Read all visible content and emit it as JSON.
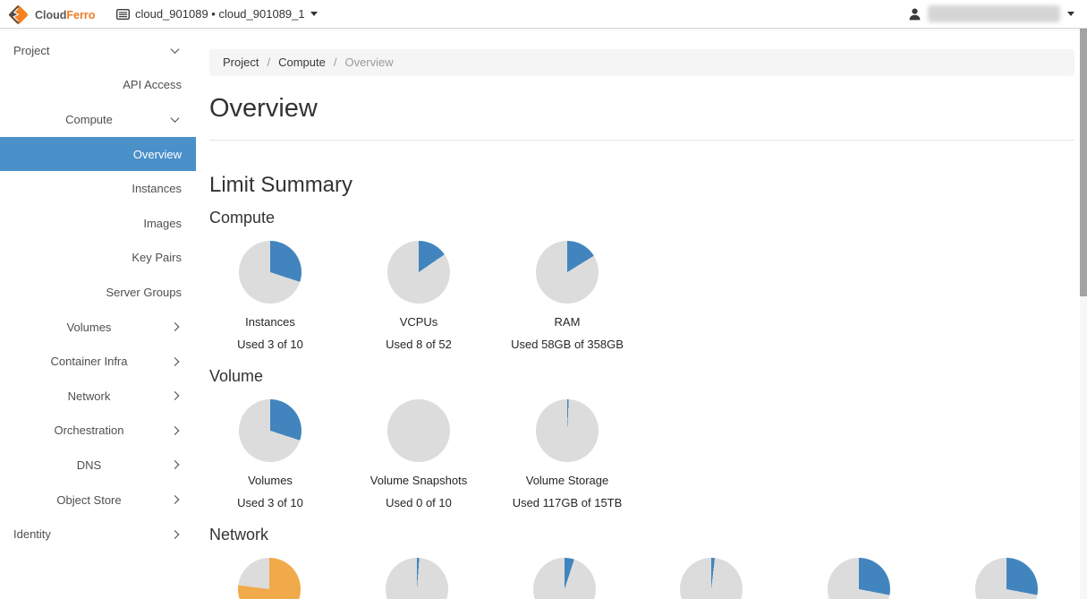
{
  "theme": {
    "accent_blue": "#4a90c9",
    "pie_used_blue": "#4285be",
    "pie_track_gray": "#dcdcdc",
    "pie_warning_orange": "#f0aa4a",
    "brand_orange": "#f58220",
    "brand_dark": "#4d4d4d"
  },
  "navbar": {
    "brand_cloud": "Cloud",
    "brand_ferro": "Ferro",
    "context_label": "cloud_901089 • cloud_901089_1",
    "user_email_redacted": true
  },
  "sidebar": {
    "items": [
      {
        "label": "Project",
        "level": 1,
        "chevron": "down",
        "active": false
      },
      {
        "label": "API Access",
        "level": 3,
        "chevron": "none",
        "active": false
      },
      {
        "label": "Compute",
        "level": 2,
        "chevron": "down",
        "active": false
      },
      {
        "label": "Overview",
        "level": 3,
        "chevron": "none",
        "active": true
      },
      {
        "label": "Instances",
        "level": 3,
        "chevron": "none",
        "active": false
      },
      {
        "label": "Images",
        "level": 3,
        "chevron": "none",
        "active": false
      },
      {
        "label": "Key Pairs",
        "level": 3,
        "chevron": "none",
        "active": false
      },
      {
        "label": "Server Groups",
        "level": 3,
        "chevron": "none",
        "active": false
      },
      {
        "label": "Volumes",
        "level": 2,
        "chevron": "right",
        "active": false
      },
      {
        "label": "Container Infra",
        "level": 2,
        "chevron": "right",
        "active": false
      },
      {
        "label": "Network",
        "level": 2,
        "chevron": "right",
        "active": false
      },
      {
        "label": "Orchestration",
        "level": 2,
        "chevron": "right",
        "active": false
      },
      {
        "label": "DNS",
        "level": 2,
        "chevron": "right",
        "active": false
      },
      {
        "label": "Object Store",
        "level": 2,
        "chevron": "right",
        "active": false
      },
      {
        "label": "Identity",
        "level": 1,
        "chevron": "right",
        "active": false
      }
    ]
  },
  "breadcrumb": {
    "items": [
      {
        "label": "Project",
        "current": false
      },
      {
        "label": "Compute",
        "current": false
      },
      {
        "label": "Overview",
        "current": true
      }
    ]
  },
  "main": {
    "title": "Overview",
    "limit_summary_title": "Limit Summary"
  },
  "chart_data": [
    {
      "type": "pie",
      "group": "Compute",
      "items": [
        {
          "label": "Instances",
          "caption": "Used 3 of 10",
          "used": 3,
          "limit": 10,
          "percent": 30,
          "color": "#4285be"
        },
        {
          "label": "VCPUs",
          "caption": "Used 8 of 52",
          "used": 8,
          "limit": 52,
          "percent": 15.4,
          "color": "#4285be"
        },
        {
          "label": "RAM",
          "caption": "Used 58GB of 358GB",
          "used": 58,
          "limit": 358,
          "percent": 16.2,
          "color": "#4285be"
        }
      ]
    },
    {
      "type": "pie",
      "group": "Volume",
      "items": [
        {
          "label": "Volumes",
          "caption": "Used 3 of 10",
          "used": 3,
          "limit": 10,
          "percent": 30,
          "color": "#4285be"
        },
        {
          "label": "Volume Snapshots",
          "caption": "Used 0 of 10",
          "used": 0,
          "limit": 10,
          "percent": 0,
          "color": "#4285be"
        },
        {
          "label": "Volume Storage",
          "caption": "Used 117GB of 15TB",
          "used": 117,
          "limit": 15360,
          "percent": 0.8,
          "color": "#4285be"
        }
      ]
    },
    {
      "type": "pie",
      "group": "Network",
      "items": [
        {
          "label": "",
          "caption": "",
          "percent": 77,
          "color": "#f0aa4a"
        },
        {
          "label": "",
          "caption": "",
          "percent": 1.2,
          "color": "#4285be"
        },
        {
          "label": "",
          "caption": "",
          "percent": 5,
          "color": "#4285be"
        },
        {
          "label": "",
          "caption": "",
          "percent": 1.8,
          "color": "#4285be"
        },
        {
          "label": "",
          "caption": "",
          "percent": 28,
          "color": "#4285be"
        },
        {
          "label": "",
          "caption": "",
          "percent": 28,
          "color": "#4285be"
        }
      ]
    }
  ]
}
